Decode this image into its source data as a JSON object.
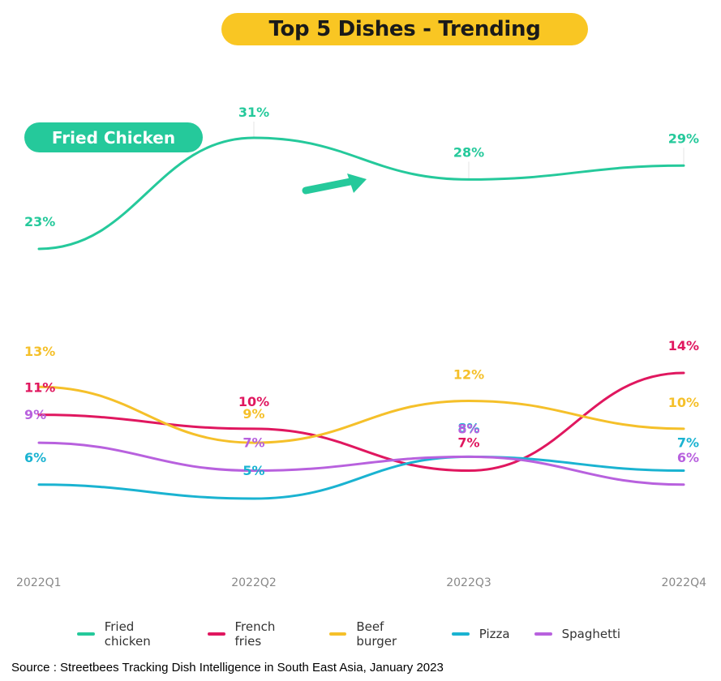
{
  "header": {
    "title": "Top 5 Dishes - Trending"
  },
  "badge": {
    "label": "Fried Chicken"
  },
  "chart_data": {
    "type": "line",
    "categories": [
      "2022Q1",
      "2022Q2",
      "2022Q3",
      "2022Q4"
    ],
    "series": [
      {
        "name": "Fried chicken",
        "color": "#25c99b",
        "values": [
          23,
          31,
          28,
          29
        ],
        "labels": [
          "23%",
          "31%",
          "28%",
          "29%"
        ]
      },
      {
        "name": "French fries",
        "color": "#e0175f",
        "values": [
          11,
          10,
          7,
          14
        ],
        "labels": [
          "11%",
          "10%",
          "7%",
          "14%"
        ]
      },
      {
        "name": "Beef burger",
        "color": "#f5c02a",
        "values": [
          13,
          9,
          12,
          10
        ],
        "labels": [
          "13%",
          "9%",
          "12%",
          "10%"
        ]
      },
      {
        "name": "Pizza",
        "color": "#1ab3d1",
        "values": [
          6,
          5,
          8,
          7
        ],
        "labels": [
          "6%",
          "5%",
          "8%",
          "7%"
        ]
      },
      {
        "name": "Spaghetti",
        "color": "#b861de",
        "values": [
          9,
          7,
          8,
          6
        ],
        "labels": [
          "9%",
          "7%",
          "8%",
          "6%"
        ]
      }
    ],
    "grid": false,
    "legend_position": "bottom"
  },
  "source": {
    "text": "Source : Streetbees Tracking Dish Intelligence in South East Asia, January 2023"
  }
}
